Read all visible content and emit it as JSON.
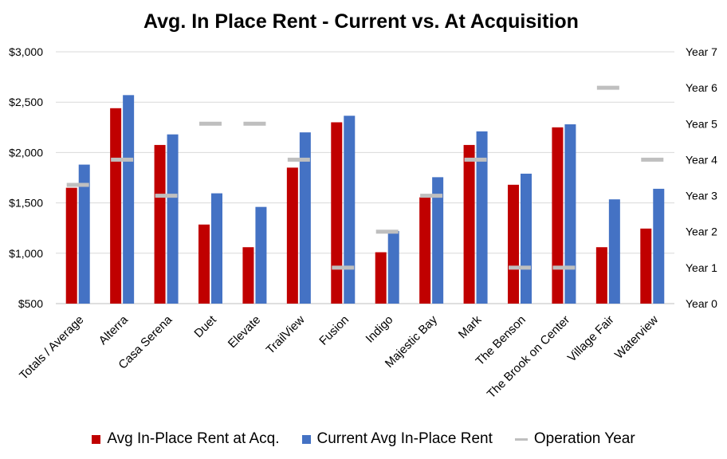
{
  "chart_data": {
    "type": "bar",
    "title": "Avg. In Place Rent - Current vs. At Acquisition",
    "categories": [
      "Totals / Average",
      "Alterra",
      "Casa Serena",
      "Duet",
      "Elevate",
      "TrailView",
      "Fusion",
      "Indigo",
      "Majestic Bay",
      "Mark",
      "The Benson",
      "The Brook on Center",
      "Village Fair",
      "Waterview"
    ],
    "series": [
      {
        "name": "Avg In-Place Rent at Acq.",
        "color": "#c00000",
        "axis": "left",
        "values": [
          1650,
          2440,
          2075,
          1285,
          1060,
          1850,
          2300,
          1010,
          1555,
          2075,
          1680,
          2250,
          1060,
          1245
        ]
      },
      {
        "name": "Current Avg In-Place Rent",
        "color": "#4472c4",
        "axis": "left",
        "values": [
          1880,
          2570,
          2180,
          1595,
          1460,
          2200,
          2365,
          1220,
          1755,
          2210,
          1790,
          2280,
          1535,
          1640
        ]
      },
      {
        "name": "Operation Year",
        "color": "#bfbfbf",
        "axis": "right",
        "marker": "dash",
        "values": [
          3.3,
          4,
          3,
          5,
          5,
          4,
          1,
          2,
          3,
          4,
          1,
          1,
          6,
          4
        ]
      }
    ],
    "y_left": {
      "min": 500,
      "max": 3000,
      "ticks": [
        500,
        1000,
        1500,
        2000,
        2500,
        3000
      ],
      "tick_labels": [
        "$500",
        "$1,000",
        "$1,500",
        "$2,000",
        "$2,500",
        "$3,000"
      ]
    },
    "y_right": {
      "min": 0,
      "max": 7,
      "ticks": [
        0,
        1,
        2,
        3,
        4,
        5,
        6,
        7
      ],
      "tick_labels": [
        "Year 0",
        "Year 1",
        "Year 2",
        "Year 3",
        "Year 4",
        "Year 5",
        "Year 6",
        "Year 7"
      ]
    },
    "grid": true,
    "legend_position": "bottom"
  }
}
